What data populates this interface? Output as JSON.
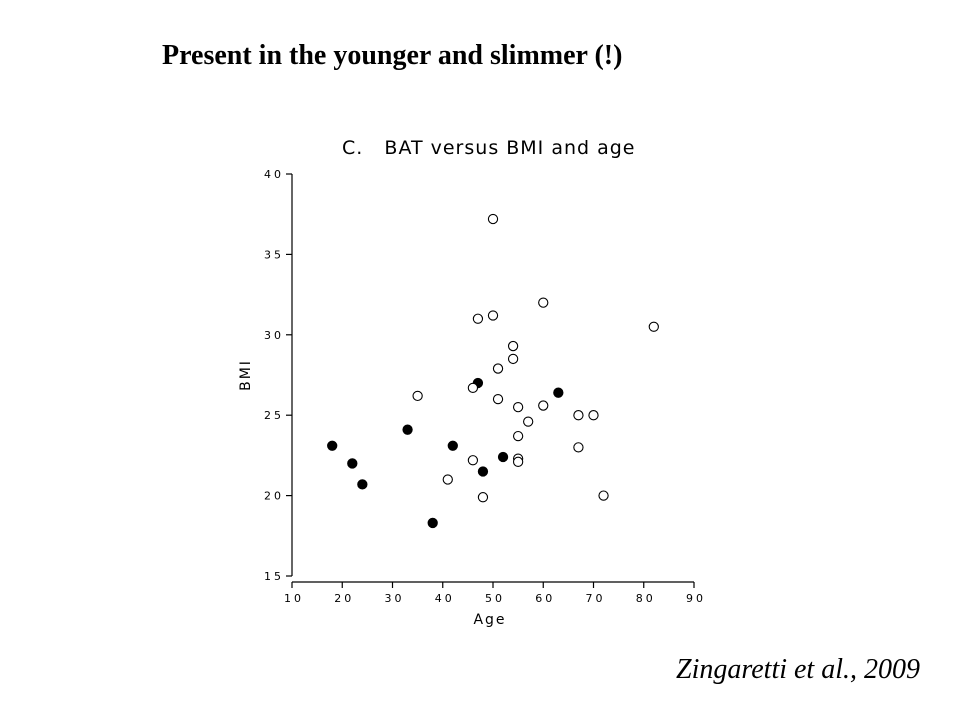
{
  "slide": {
    "title": "Present in the younger and slimmer (!)",
    "citation": "Zingaretti et al., 2009"
  },
  "chart_data": {
    "type": "scatter",
    "title": "C.   BAT versus BMI and age",
    "xlabel": "Age",
    "ylabel": "BMI",
    "xlim": [
      10,
      90
    ],
    "ylim": [
      15,
      40
    ],
    "xticks": [
      10,
      20,
      30,
      40,
      50,
      60,
      70,
      80,
      90
    ],
    "yticks": [
      15,
      20,
      25,
      30,
      35,
      40
    ],
    "grid": false,
    "series": [
      {
        "marker": "filled",
        "color": "#000000",
        "points": [
          {
            "x": 18,
            "y": 23.1
          },
          {
            "x": 22,
            "y": 22.0
          },
          {
            "x": 24,
            "y": 20.7
          },
          {
            "x": 33,
            "y": 24.1
          },
          {
            "x": 38,
            "y": 18.3
          },
          {
            "x": 42,
            "y": 23.1
          },
          {
            "x": 47,
            "y": 27.0
          },
          {
            "x": 48,
            "y": 21.5
          },
          {
            "x": 52,
            "y": 22.4
          },
          {
            "x": 63,
            "y": 26.4
          }
        ]
      },
      {
        "marker": "open",
        "color": "#000000",
        "points": [
          {
            "x": 50,
            "y": 37.2
          },
          {
            "x": 60,
            "y": 32.0
          },
          {
            "x": 47,
            "y": 31.0
          },
          {
            "x": 50,
            "y": 31.2
          },
          {
            "x": 82,
            "y": 30.5
          },
          {
            "x": 54,
            "y": 29.3
          },
          {
            "x": 54,
            "y": 28.5
          },
          {
            "x": 51,
            "y": 27.9
          },
          {
            "x": 46,
            "y": 26.7
          },
          {
            "x": 35,
            "y": 26.2
          },
          {
            "x": 51,
            "y": 26.0
          },
          {
            "x": 55,
            "y": 25.5
          },
          {
            "x": 60,
            "y": 25.6
          },
          {
            "x": 67,
            "y": 25.0
          },
          {
            "x": 70,
            "y": 25.0
          },
          {
            "x": 57,
            "y": 24.6
          },
          {
            "x": 55,
            "y": 23.7
          },
          {
            "x": 67,
            "y": 23.0
          },
          {
            "x": 46,
            "y": 22.2
          },
          {
            "x": 55,
            "y": 22.3
          },
          {
            "x": 55,
            "y": 22.1
          },
          {
            "x": 41,
            "y": 21.0
          },
          {
            "x": 48,
            "y": 19.9
          },
          {
            "x": 72,
            "y": 20.0
          }
        ]
      }
    ]
  }
}
